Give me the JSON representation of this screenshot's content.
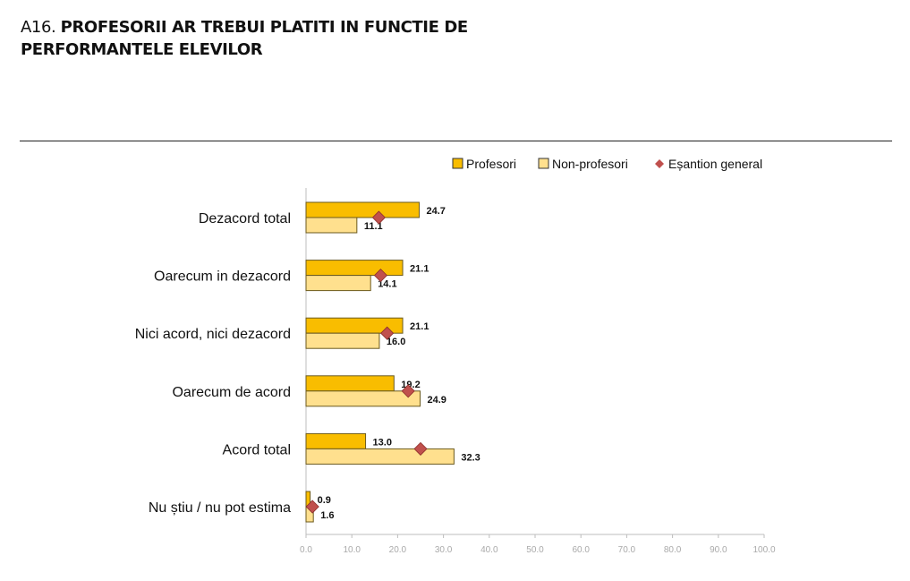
{
  "title": {
    "prefix": "A16.",
    "line1": "PROFESORII AR TREBUI PLATITI IN FUNCTIE DE",
    "line2": "PERFORMANTELE ELEVILOR"
  },
  "colors": {
    "profesori": "#f9bd00",
    "non_profesori": "#ffe08e",
    "esantion": "#c0504d",
    "bar_stroke": "#6b5a1e"
  },
  "chart_data": {
    "type": "bar",
    "orientation": "horizontal",
    "categories": [
      "Dezacord total",
      "Oarecum in dezacord",
      "Nici acord, nici dezacord",
      "Oarecum de acord",
      "Acord total",
      "Nu știu / nu pot estima"
    ],
    "series": [
      {
        "name": "Profesori",
        "marker": "bar",
        "values": [
          24.7,
          21.1,
          21.1,
          19.2,
          13.0,
          0.9
        ]
      },
      {
        "name": "Non-profesori",
        "marker": "bar",
        "values": [
          11.1,
          14.1,
          16.0,
          24.9,
          32.3,
          1.6
        ]
      },
      {
        "name": "Eșantion general",
        "marker": "diamond",
        "values": [
          15.9,
          16.3,
          17.7,
          22.3,
          25.0,
          1.4
        ]
      }
    ],
    "value_labels": {
      "Profesori": [
        "24.7",
        "21.1",
        "21.1",
        "19.2",
        "13.0",
        "0.9"
      ],
      "Non-profesori": [
        "11.1",
        "14.1",
        "16.0",
        "24.9",
        "32.3",
        "1.6"
      ]
    },
    "xlim": [
      0,
      100
    ],
    "xticks": [
      "0.0",
      "10.0",
      "20.0",
      "30.0",
      "40.0",
      "50.0",
      "60.0",
      "70.0",
      "80.0",
      "90.0",
      "100.0"
    ],
    "legend_position": "top-right",
    "grid": false
  }
}
